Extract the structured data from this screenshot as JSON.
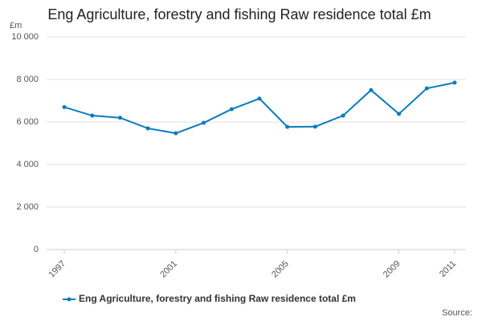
{
  "chart_data": {
    "type": "line",
    "title": "Eng Agriculture, forestry and fishing Raw residence total £m",
    "y_unit": "£m",
    "source": "Source:",
    "x": [
      1997,
      1998,
      1999,
      2000,
      2001,
      2002,
      2003,
      2004,
      2005,
      2006,
      2007,
      2008,
      2009,
      2010,
      2011
    ],
    "series": [
      {
        "name": "Eng Agriculture, forestry and fishing Raw residence total £m",
        "color": "#0a7bbd",
        "values": [
          6700,
          6300,
          6200,
          5700,
          5470,
          5960,
          6600,
          7100,
          5770,
          5780,
          6300,
          7500,
          6380,
          7580,
          7850
        ]
      }
    ],
    "xlim": [
      1997,
      2011
    ],
    "xticks": [
      1997,
      2001,
      2005,
      2009,
      2011
    ],
    "ylim": [
      0,
      10000
    ],
    "yticks": [
      0,
      {
        "value": 2000,
        "label": "2 000"
      },
      {
        "value": 4000,
        "label": "4 000"
      },
      {
        "value": 6000,
        "label": "6 000"
      },
      {
        "value": 8000,
        "label": "8 000"
      },
      {
        "value": 10000,
        "label": "10 000"
      }
    ],
    "grid": true
  }
}
